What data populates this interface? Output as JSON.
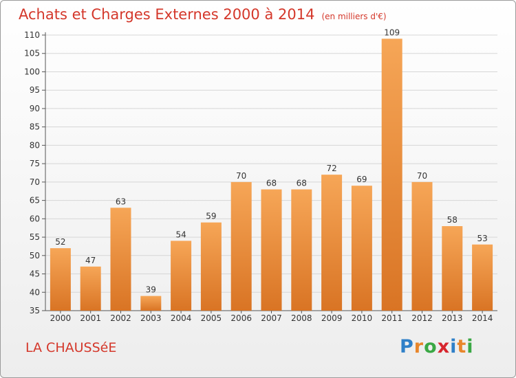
{
  "title": "Achats et Charges Externes 2000 à 2014",
  "unit": "(en milliers d'€)",
  "commune": "LA CHAUSSéE",
  "logo": {
    "letters": [
      {
        "ch": "P",
        "color": "#2f80c8"
      },
      {
        "ch": "r",
        "color": "#e8862b"
      },
      {
        "ch": "o",
        "color": "#3aa845"
      },
      {
        "ch": "x",
        "color": "#d7262e"
      },
      {
        "ch": "i",
        "color": "#2f80c8"
      },
      {
        "ch": "t",
        "color": "#e8862b"
      },
      {
        "ch": "i",
        "color": "#3aa845"
      }
    ]
  },
  "colors": {
    "bar_top": "#f6a657",
    "bar_bottom": "#d97424",
    "title": "#d4372a"
  },
  "chart_data": {
    "type": "bar",
    "categories": [
      "2000",
      "2001",
      "2002",
      "2003",
      "2004",
      "2005",
      "2006",
      "2007",
      "2008",
      "2009",
      "2010",
      "2011",
      "2012",
      "2013",
      "2014"
    ],
    "values": [
      52,
      47,
      63,
      39,
      54,
      59,
      70,
      68,
      68,
      72,
      69,
      109,
      70,
      58,
      53
    ],
    "ylim": [
      35,
      110
    ],
    "yticks": [
      35,
      40,
      45,
      50,
      55,
      60,
      65,
      70,
      75,
      80,
      85,
      90,
      95,
      100,
      105,
      110
    ],
    "grid": true
  }
}
